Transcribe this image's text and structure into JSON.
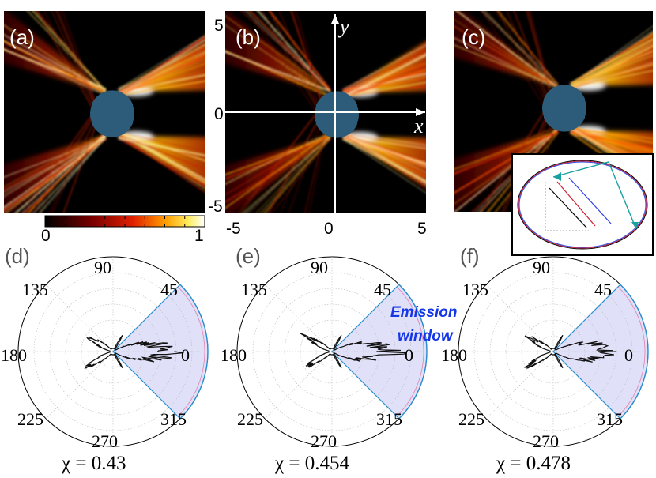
{
  "panels_top": [
    {
      "label": "(a)"
    },
    {
      "label": "(b)"
    },
    {
      "label": "(c)"
    }
  ],
  "axes_b": {
    "x_label": "x",
    "y_label": "y",
    "x_ticks": [
      "-5",
      "0",
      "5"
    ],
    "y_ticks": [
      "5",
      "0",
      "-5"
    ]
  },
  "colorbar": {
    "min": "0",
    "max": "1"
  },
  "panels_polar": [
    {
      "label": "(d)",
      "chi": "χ = 0.43"
    },
    {
      "label": "(e)",
      "chi": "χ = 0.454"
    },
    {
      "label": "(f)",
      "chi": "χ = 0.478"
    }
  ],
  "polar_angles": [
    "90",
    "45",
    "135",
    "180",
    "0",
    "225",
    "315",
    "270"
  ],
  "emission_window": {
    "line1": "Emission",
    "line2": "window"
  },
  "colors": {
    "background": "#000000",
    "disk": "#2c5c7a",
    "emission_fill": "#d8d8f6",
    "emission_edge": "#2a8fd0",
    "emission_text": "#1436e6"
  }
}
